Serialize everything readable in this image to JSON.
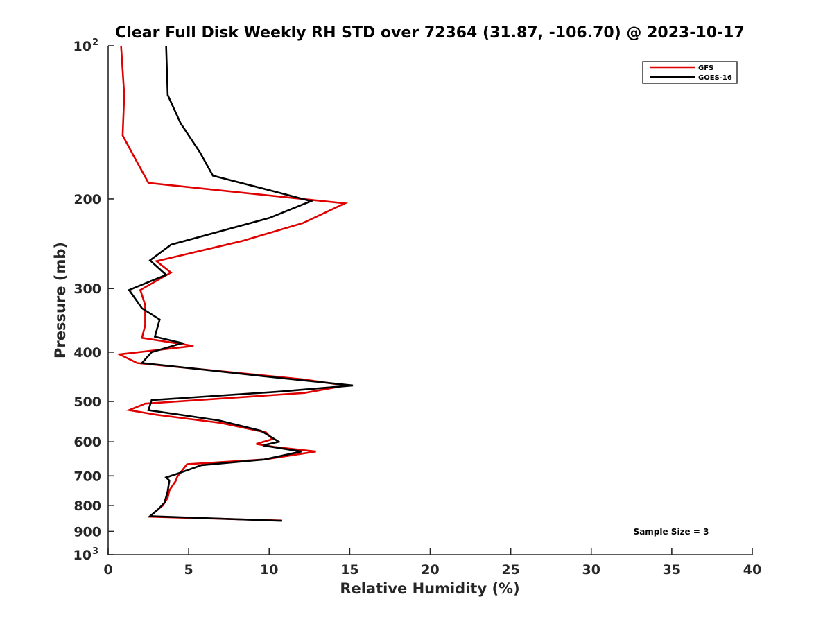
{
  "chart_data": {
    "type": "line",
    "title": "Clear Full Disk Weekly RH STD over 72364 (31.87, -106.70) @ 2023-10-17",
    "xlabel": "Relative Humidity (%)",
    "ylabel": "Pressure (mb)",
    "xlim": [
      0,
      40
    ],
    "ylim": [
      100,
      1000
    ],
    "yscale": "log",
    "y_reversed": true,
    "grid": false,
    "legend_position": "top-right",
    "x_ticks": [
      "0",
      "5",
      "10",
      "15",
      "20",
      "25",
      "30",
      "35",
      "40"
    ],
    "x_tick_values": [
      0,
      5,
      10,
      15,
      20,
      25,
      30,
      35,
      40
    ],
    "y_ticks": [
      {
        "value": 100,
        "label": "10",
        "sup": "2"
      },
      {
        "value": 200,
        "label": "200"
      },
      {
        "value": 300,
        "label": "300"
      },
      {
        "value": 400,
        "label": "400"
      },
      {
        "value": 500,
        "label": "500"
      },
      {
        "value": 600,
        "label": "600"
      },
      {
        "value": 700,
        "label": "700"
      },
      {
        "value": 800,
        "label": "800"
      },
      {
        "value": 900,
        "label": "900"
      },
      {
        "value": 1000,
        "label": "10",
        "sup": "3"
      }
    ],
    "annotation": "Sample Size = 3",
    "series": [
      {
        "name": "GFS",
        "color": "#e00000",
        "points": [
          [
            0.8,
            100
          ],
          [
            1.0,
            125
          ],
          [
            0.9,
            150
          ],
          [
            1.6,
            165
          ],
          [
            2.5,
            186
          ],
          [
            14.7,
            204
          ],
          [
            12.1,
            223
          ],
          [
            8.3,
            242
          ],
          [
            3.0,
            265
          ],
          [
            3.9,
            279
          ],
          [
            2.0,
            302
          ],
          [
            2.3,
            323
          ],
          [
            2.3,
            354
          ],
          [
            2.1,
            375
          ],
          [
            5.3,
            389
          ],
          [
            0.7,
            404
          ],
          [
            1.8,
            420
          ],
          [
            12.0,
            452
          ],
          [
            14.8,
            465
          ],
          [
            12.2,
            481
          ],
          [
            2.3,
            505
          ],
          [
            1.3,
            520
          ],
          [
            3.0,
            531
          ],
          [
            7.0,
            551
          ],
          [
            9.8,
            575
          ],
          [
            10.2,
            593
          ],
          [
            9.2,
            606
          ],
          [
            10.3,
            614
          ],
          [
            12.9,
            627
          ],
          [
            9.7,
            650
          ],
          [
            4.9,
            664
          ],
          [
            4.3,
            702
          ],
          [
            4.2,
            716
          ],
          [
            3.8,
            748
          ],
          [
            3.7,
            773
          ],
          [
            3.4,
            800
          ],
          [
            2.9,
            824
          ],
          [
            2.6,
            842
          ],
          [
            10.8,
            857
          ]
        ]
      },
      {
        "name": "GOES-16",
        "color": "#000000",
        "points": [
          [
            3.6,
            100
          ],
          [
            3.7,
            125
          ],
          [
            4.5,
            142
          ],
          [
            5.7,
            162
          ],
          [
            6.5,
            180
          ],
          [
            10.5,
            194
          ],
          [
            12.6,
            202
          ],
          [
            10.0,
            218
          ],
          [
            3.9,
            246
          ],
          [
            2.6,
            264
          ],
          [
            3.6,
            282
          ],
          [
            1.3,
            302
          ],
          [
            2.1,
            328
          ],
          [
            3.2,
            345
          ],
          [
            2.9,
            373
          ],
          [
            4.6,
            384
          ],
          [
            2.7,
            400
          ],
          [
            2.1,
            420
          ],
          [
            10.2,
            448
          ],
          [
            15.2,
            465
          ],
          [
            10.7,
            478
          ],
          [
            2.7,
            497
          ],
          [
            2.5,
            520
          ],
          [
            6.9,
            545
          ],
          [
            9.5,
            571
          ],
          [
            10.6,
            600
          ],
          [
            9.6,
            610
          ],
          [
            12.0,
            627
          ],
          [
            9.7,
            650
          ],
          [
            5.8,
            667
          ],
          [
            4.2,
            695
          ],
          [
            3.6,
            705
          ],
          [
            3.8,
            715
          ],
          [
            3.7,
            750
          ],
          [
            3.5,
            790
          ],
          [
            3.1,
            815
          ],
          [
            2.6,
            840
          ],
          [
            10.8,
            858
          ]
        ]
      }
    ]
  }
}
